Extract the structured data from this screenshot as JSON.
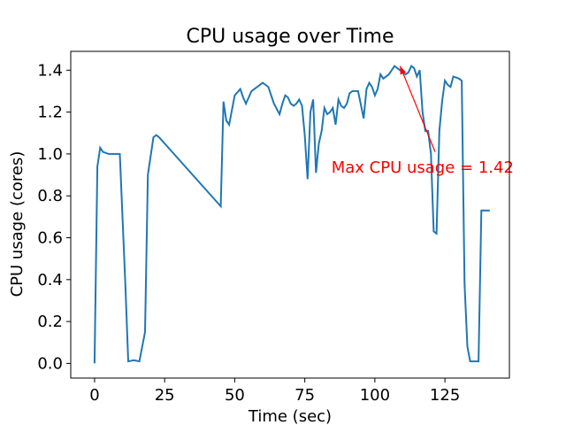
{
  "chart_data": {
    "type": "line",
    "title": "CPU usage over Time",
    "xlabel": "Time (sec)",
    "ylabel": "CPU usage (cores)",
    "xlim": [
      -8.5,
      148
    ],
    "ylim": [
      -0.07,
      1.49
    ],
    "xticks": [
      0,
      25,
      50,
      75,
      100,
      125
    ],
    "yticks": [
      0.0,
      0.2,
      0.4,
      0.6,
      0.8,
      1.0,
      1.2,
      1.4
    ],
    "grid": false,
    "series": [
      {
        "color": "#1f77b4",
        "x": [
          0,
          1,
          2,
          3,
          5,
          8,
          9,
          11,
          12,
          14,
          16,
          18,
          19,
          21,
          22,
          23,
          45,
          46,
          47,
          48,
          50,
          52,
          53,
          54,
          56,
          58,
          60,
          62,
          63,
          64,
          66,
          67,
          68,
          69,
          70,
          71,
          72,
          73,
          74,
          75,
          76,
          77,
          78,
          79,
          80,
          81,
          82,
          83,
          84,
          85,
          86,
          87,
          88,
          89,
          90,
          91,
          92,
          94,
          96,
          97,
          98,
          99,
          100,
          101,
          102,
          103,
          104,
          105,
          106,
          107,
          108,
          109,
          110,
          111,
          112,
          113,
          114,
          115,
          116,
          117,
          118,
          119,
          120,
          121,
          122,
          123,
          124,
          125,
          126,
          127,
          128,
          130,
          131,
          132,
          133,
          134,
          135,
          137,
          138,
          139,
          140,
          141
        ],
        "y": [
          0.0,
          0.94,
          1.03,
          1.01,
          1.0,
          1.0,
          1.0,
          0.37,
          0.01,
          0.015,
          0.01,
          0.15,
          0.9,
          1.08,
          1.09,
          1.08,
          0.75,
          1.25,
          1.16,
          1.14,
          1.28,
          1.31,
          1.27,
          1.24,
          1.3,
          1.32,
          1.34,
          1.32,
          1.28,
          1.24,
          1.19,
          1.24,
          1.28,
          1.27,
          1.24,
          1.23,
          1.24,
          1.26,
          1.23,
          1.09,
          0.88,
          1.2,
          1.26,
          0.91,
          1.05,
          1.11,
          1.22,
          1.19,
          1.2,
          1.22,
          1.14,
          1.26,
          1.23,
          1.22,
          1.24,
          1.29,
          1.3,
          1.3,
          1.17,
          1.31,
          1.34,
          1.32,
          1.28,
          1.31,
          1.38,
          1.36,
          1.37,
          1.38,
          1.4,
          1.42,
          1.41,
          1.4,
          1.39,
          1.38,
          1.39,
          1.42,
          1.41,
          1.37,
          1.4,
          1.2,
          1.11,
          1.11,
          1.0,
          0.63,
          0.62,
          1.11,
          1.25,
          1.35,
          1.33,
          1.32,
          1.37,
          1.36,
          1.35,
          0.38,
          0.08,
          0.01,
          0.01,
          0.01,
          0.73,
          0.73,
          0.73,
          0.73
        ]
      }
    ],
    "annotation": {
      "text": "Max CPU usage = 1.42",
      "color": "#ff0000",
      "point": [
        109,
        1.42
      ],
      "text_pos": [
        84.5,
        0.91
      ]
    }
  }
}
